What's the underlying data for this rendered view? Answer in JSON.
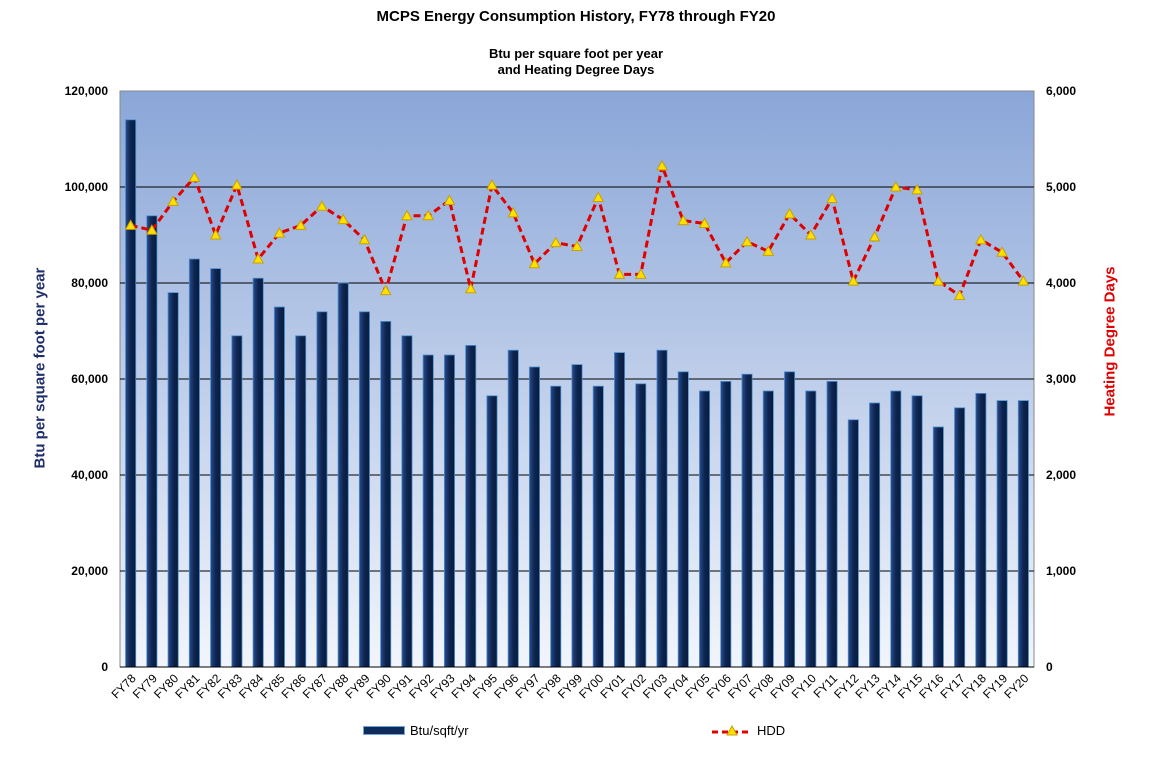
{
  "chart_data": {
    "type": "bar",
    "title": "MCPS Energy Consumption History, FY78 through FY20",
    "subtitle_lines": [
      "Btu per square foot per year",
      "and Heating Degree Days"
    ],
    "ylabel": "Btu per square foot per year",
    "y2label": "Heating Degree Days",
    "ylim": [
      0,
      120000
    ],
    "y2lim": [
      0,
      6000
    ],
    "yticks": [
      "0",
      "20,000",
      "40,000",
      "60,000",
      "80,000",
      "100,000",
      "120,000"
    ],
    "y2ticks": [
      "0",
      "1,000",
      "2,000",
      "3,000",
      "4,000",
      "5,000",
      "6,000"
    ],
    "grid": true,
    "legend_position": "bottom",
    "categories": [
      "FY78",
      "FY79",
      "FY80",
      "FY81",
      "FY82",
      "FY83",
      "FY84",
      "FY85",
      "FY86",
      "FY87",
      "FY88",
      "FY89",
      "FY90",
      "FY91",
      "FY92",
      "FY93",
      "FY94",
      "FY95",
      "FY96",
      "FY97",
      "FY98",
      "FY99",
      "FY00",
      "FY01",
      "FY02",
      "FY03",
      "FY04",
      "FY05",
      "FY06",
      "FY07",
      "FY08",
      "FY09",
      "FY10",
      "FY11",
      "FY12",
      "FY13",
      "FY14",
      "FY15",
      "FY16",
      "FY17",
      "FY18",
      "FY19",
      "FY20"
    ],
    "series": [
      {
        "name": "Btu/sqft/yr",
        "type": "bar",
        "axis": "left",
        "color": "#0f2b5b",
        "values": [
          114000,
          94000,
          78000,
          85000,
          83000,
          69000,
          81000,
          75000,
          69000,
          74000,
          80000,
          74000,
          72000,
          69000,
          65000,
          65000,
          67000,
          56500,
          66000,
          62500,
          58500,
          63000,
          58500,
          65500,
          59000,
          66000,
          61500,
          57500,
          59500,
          61000,
          57500,
          61500,
          57500,
          59500,
          51500,
          55000,
          57500,
          56500,
          50000,
          54000,
          57000,
          55500,
          55500
        ]
      },
      {
        "name": "HDD",
        "type": "line",
        "axis": "right",
        "color": "#e00000",
        "marker_color": "#ffe000",
        "values": [
          4600,
          4550,
          4850,
          5100,
          4500,
          5020,
          4250,
          4520,
          4600,
          4800,
          4660,
          4450,
          3920,
          4700,
          4700,
          4860,
          3940,
          5020,
          4730,
          4200,
          4420,
          4380,
          4890,
          4090,
          4090,
          5220,
          4650,
          4620,
          4210,
          4430,
          4330,
          4720,
          4500,
          4880,
          4020,
          4480,
          5000,
          4970,
          4020,
          3870,
          4450,
          4320,
          4020
        ]
      }
    ]
  }
}
